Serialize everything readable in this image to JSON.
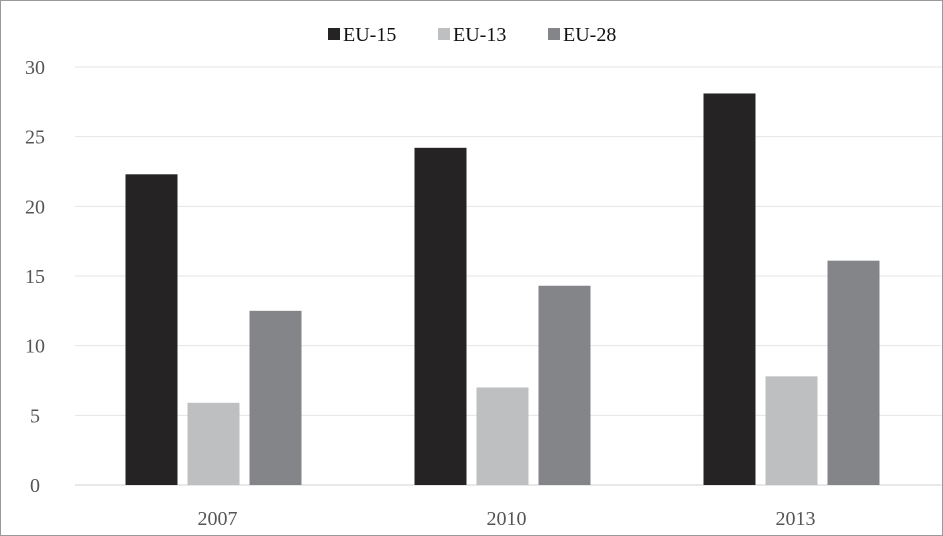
{
  "chart_data": {
    "type": "bar",
    "categories": [
      "2007",
      "2010",
      "2013"
    ],
    "series": [
      {
        "name": "EU-15",
        "values": [
          22.3,
          24.2,
          28.1
        ],
        "color": "#262324"
      },
      {
        "name": "EU-13",
        "values": [
          5.9,
          7.0,
          7.8
        ],
        "color": "#bebfc1"
      },
      {
        "name": "EU-28",
        "values": [
          12.5,
          14.3,
          16.1
        ],
        "color": "#848588"
      }
    ],
    "yticks": [
      "0",
      "5",
      "10",
      "15",
      "20",
      "25",
      "30"
    ],
    "ylim": [
      0,
      30
    ],
    "grid": true,
    "legend_position": "top-center",
    "title": "",
    "xlabel": "",
    "ylabel": ""
  }
}
